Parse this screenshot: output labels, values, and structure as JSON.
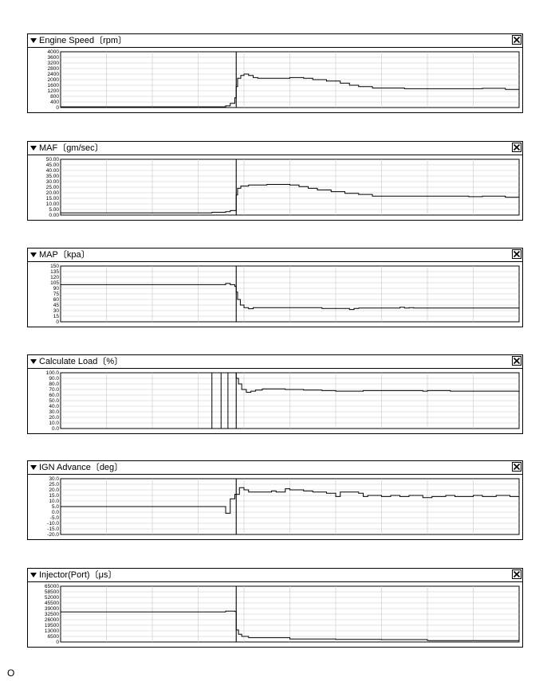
{
  "footer": {
    "mark": "O"
  },
  "icons": {
    "collapse": "triangle-down-icon",
    "close": "close-x-icon"
  },
  "panels": [
    {
      "title": "Engine Speed〔rpm〕",
      "ticks": [
        "4000",
        "3600",
        "3200",
        "2800",
        "2400",
        "2000",
        "1600",
        "1200",
        "800",
        "400",
        "0"
      ]
    },
    {
      "title": "MAF〔gm/sec〕",
      "ticks": [
        "50.00",
        "45.00",
        "40.00",
        "35.00",
        "30.00",
        "25.00",
        "20.00",
        "15.00",
        "10.00",
        "5.00",
        "0.00"
      ]
    },
    {
      "title": "MAP〔kpa〕",
      "ticks": [
        "150",
        "135",
        "120",
        "105",
        "90",
        "75",
        "60",
        "45",
        "30",
        "15",
        "0"
      ]
    },
    {
      "title": "Calculate Load〔%〕",
      "ticks": [
        "100.0",
        "90.0",
        "80.0",
        "70.0",
        "60.0",
        "50.0",
        "40.0",
        "30.0",
        "20.0",
        "10.0",
        "0.0"
      ]
    },
    {
      "title": "IGN Advance〔deg〕",
      "ticks": [
        "30.0",
        "25.0",
        "20.0",
        "15.0",
        "10.0",
        "5.0",
        "0.0",
        "-5.0",
        "-10.0",
        "-15.0",
        "-20.0"
      ]
    },
    {
      "title": "Injector(Port)〔μs〕",
      "ticks": [
        "65000",
        "58500",
        "52000",
        "45500",
        "39000",
        "32500",
        "26000",
        "19500",
        "13000",
        "6500",
        "0"
      ]
    }
  ],
  "chart_data": [
    {
      "type": "line",
      "title": "Engine Speed〔rpm〕",
      "ylim": [
        0,
        4000
      ],
      "xlim": [
        0,
        100
      ],
      "grid": true,
      "series": [
        {
          "values": [
            [
              0,
              50
            ],
            [
              36,
              50
            ],
            [
              36,
              120
            ],
            [
              37,
              120
            ],
            [
              37,
              300
            ],
            [
              38,
              300
            ],
            [
              38,
              700
            ],
            [
              38.3,
              700
            ],
            [
              38.3,
              1500
            ],
            [
              38.6,
              1500
            ],
            [
              38.6,
              2100
            ],
            [
              39.3,
              2100
            ],
            [
              39.3,
              2300
            ],
            [
              40,
              2300
            ],
            [
              40,
              2400
            ],
            [
              41,
              2400
            ],
            [
              41,
              2300
            ],
            [
              42,
              2300
            ],
            [
              42,
              2150
            ],
            [
              43,
              2150
            ],
            [
              43,
              2100
            ],
            [
              50,
              2100
            ],
            [
              50,
              2150
            ],
            [
              53,
              2150
            ],
            [
              53,
              2100
            ],
            [
              55,
              2100
            ],
            [
              55,
              2000
            ],
            [
              58,
              2000
            ],
            [
              58,
              1900
            ],
            [
              61,
              1900
            ],
            [
              61,
              1750
            ],
            [
              63,
              1750
            ],
            [
              63,
              1600
            ],
            [
              65,
              1600
            ],
            [
              65,
              1500
            ],
            [
              68,
              1500
            ],
            [
              68,
              1400
            ],
            [
              75,
              1400
            ],
            [
              75,
              1350
            ],
            [
              92,
              1350
            ],
            [
              92,
              1380
            ],
            [
              97,
              1380
            ],
            [
              97,
              1300
            ],
            [
              100,
              1300
            ]
          ]
        }
      ]
    },
    {
      "type": "line",
      "title": "MAF〔gm/sec〕",
      "ylim": [
        0,
        50
      ],
      "xlim": [
        0,
        100
      ],
      "grid": true,
      "series": [
        {
          "values": [
            [
              0,
              2
            ],
            [
              33,
              2
            ],
            [
              33,
              2.5
            ],
            [
              36,
              2.5
            ],
            [
              36,
              3
            ],
            [
              37,
              3
            ],
            [
              37,
              4
            ],
            [
              38,
              4
            ],
            [
              38.3,
              4
            ],
            [
              38.3,
              18
            ],
            [
              38.6,
              18
            ],
            [
              38.6,
              24
            ],
            [
              39.3,
              24
            ],
            [
              39.3,
              26
            ],
            [
              41,
              26
            ],
            [
              41,
              27
            ],
            [
              45,
              27
            ],
            [
              45,
              27.5
            ],
            [
              50,
              27.5
            ],
            [
              50,
              27
            ],
            [
              52,
              27
            ],
            [
              52,
              25.5
            ],
            [
              54,
              25.5
            ],
            [
              54,
              24
            ],
            [
              56,
              24
            ],
            [
              56,
              22.5
            ],
            [
              59,
              22.5
            ],
            [
              59,
              21
            ],
            [
              62,
              21
            ],
            [
              62,
              19.5
            ],
            [
              65,
              19.5
            ],
            [
              65,
              18.5
            ],
            [
              68,
              18.5
            ],
            [
              68,
              17
            ],
            [
              89,
              17
            ],
            [
              89,
              16.5
            ],
            [
              92,
              16.5
            ],
            [
              92,
              17
            ],
            [
              97,
              17
            ],
            [
              97,
              16
            ],
            [
              100,
              16
            ]
          ]
        }
      ]
    },
    {
      "type": "line",
      "title": "MAP〔kpa〕",
      "ylim": [
        0,
        150
      ],
      "xlim": [
        0,
        100
      ],
      "grid": true,
      "series": [
        {
          "values": [
            [
              0,
              100
            ],
            [
              36,
              100
            ],
            [
              36,
              103
            ],
            [
              37,
              103
            ],
            [
              37,
              100
            ],
            [
              38,
              100
            ],
            [
              38,
              95
            ],
            [
              38.3,
              95
            ],
            [
              38.3,
              80
            ],
            [
              38.6,
              80
            ],
            [
              38.6,
              60
            ],
            [
              39.2,
              60
            ],
            [
              39.2,
              45
            ],
            [
              40,
              45
            ],
            [
              40,
              38
            ],
            [
              41,
              38
            ],
            [
              41,
              35
            ],
            [
              42,
              35
            ],
            [
              42,
              38
            ],
            [
              57,
              38
            ],
            [
              57,
              36
            ],
            [
              63,
              36
            ],
            [
              63,
              33
            ],
            [
              64,
              33
            ],
            [
              64,
              36
            ],
            [
              65,
              36
            ],
            [
              65,
              37
            ],
            [
              74,
              37
            ],
            [
              74,
              39
            ],
            [
              75,
              39
            ],
            [
              75,
              37
            ],
            [
              76,
              37
            ],
            [
              76,
              38
            ],
            [
              77,
              38
            ],
            [
              77,
              37
            ],
            [
              100,
              37
            ]
          ]
        }
      ]
    },
    {
      "type": "line",
      "title": "Calculate Load〔%〕",
      "ylim": [
        0,
        100
      ],
      "xlim": [
        0,
        100
      ],
      "grid": true,
      "series": [
        {
          "values": [
            [
              0,
              0
            ],
            [
              33,
              0
            ],
            [
              33,
              100
            ],
            [
              35,
              100
            ],
            [
              35,
              0
            ],
            [
              36.5,
              0
            ],
            [
              36.5,
              100
            ],
            [
              38,
              100
            ],
            [
              38.3,
              100
            ],
            [
              38.3,
              90
            ],
            [
              38.8,
              90
            ],
            [
              38.8,
              80
            ],
            [
              39.5,
              80
            ],
            [
              39.5,
              70
            ],
            [
              40.5,
              70
            ],
            [
              40.5,
              65
            ],
            [
              41.5,
              65
            ],
            [
              41.5,
              67
            ],
            [
              42.5,
              67
            ],
            [
              42.5,
              69
            ],
            [
              44,
              69
            ],
            [
              44,
              71
            ],
            [
              49,
              71
            ],
            [
              49,
              70
            ],
            [
              53,
              70
            ],
            [
              53,
              69
            ],
            [
              57,
              69
            ],
            [
              57,
              68
            ],
            [
              60,
              68
            ],
            [
              60,
              67
            ],
            [
              66,
              67
            ],
            [
              66,
              68
            ],
            [
              79,
              68
            ],
            [
              79,
              67
            ],
            [
              80,
              67
            ],
            [
              80,
              68
            ],
            [
              85,
              68
            ],
            [
              85,
              67
            ],
            [
              100,
              67
            ]
          ]
        }
      ]
    },
    {
      "type": "line",
      "title": "IGN Advance〔deg〕",
      "ylim": [
        -20,
        30
      ],
      "xlim": [
        0,
        100
      ],
      "grid": true,
      "series": [
        {
          "values": [
            [
              0,
              5
            ],
            [
              36,
              5
            ],
            [
              36,
              -1
            ],
            [
              37,
              -1
            ],
            [
              37,
              12
            ],
            [
              38,
              12
            ],
            [
              38,
              16
            ],
            [
              39,
              16
            ],
            [
              39,
              22
            ],
            [
              40,
              22
            ],
            [
              40,
              20
            ],
            [
              41,
              20
            ],
            [
              41,
              18
            ],
            [
              46,
              18
            ],
            [
              46,
              19
            ],
            [
              47,
              19
            ],
            [
              47,
              18
            ],
            [
              49,
              18
            ],
            [
              49,
              21
            ],
            [
              50,
              21
            ],
            [
              50,
              20
            ],
            [
              53,
              20
            ],
            [
              53,
              19
            ],
            [
              55,
              19
            ],
            [
              55,
              18
            ],
            [
              58,
              18
            ],
            [
              58,
              17
            ],
            [
              60,
              17
            ],
            [
              60,
              14
            ],
            [
              61,
              14
            ],
            [
              61,
              18
            ],
            [
              65,
              18
            ],
            [
              65,
              17
            ],
            [
              66,
              17
            ],
            [
              66,
              14
            ],
            [
              67,
              14
            ],
            [
              67,
              15
            ],
            [
              70,
              15
            ],
            [
              70,
              14
            ],
            [
              72,
              14
            ],
            [
              72,
              15
            ],
            [
              74,
              15
            ],
            [
              74,
              14
            ],
            [
              76,
              14
            ],
            [
              76,
              15
            ],
            [
              79,
              15
            ],
            [
              79,
              13
            ],
            [
              81,
              13
            ],
            [
              81,
              14
            ],
            [
              84,
              14
            ],
            [
              84,
              15
            ],
            [
              86,
              15
            ],
            [
              86,
              14
            ],
            [
              90,
              14
            ],
            [
              90,
              15
            ],
            [
              92,
              15
            ],
            [
              92,
              14
            ],
            [
              95,
              14
            ],
            [
              95,
              15
            ],
            [
              98,
              15
            ],
            [
              98,
              14
            ],
            [
              100,
              14
            ]
          ]
        }
      ]
    },
    {
      "type": "line",
      "title": "Injector(Port)〔μs〕",
      "ylim": [
        0,
        65000
      ],
      "xlim": [
        0,
        100
      ],
      "grid": true,
      "series": [
        {
          "values": [
            [
              0,
              35000
            ],
            [
              36,
              35000
            ],
            [
              36,
              36000
            ],
            [
              38,
              36000
            ],
            [
              38,
              35500
            ],
            [
              38.3,
              35500
            ],
            [
              38.3,
              14000
            ],
            [
              38.8,
              14000
            ],
            [
              38.8,
              9000
            ],
            [
              39.5,
              9000
            ],
            [
              39.5,
              6500
            ],
            [
              41,
              6500
            ],
            [
              41,
              5000
            ],
            [
              50,
              5000
            ],
            [
              50,
              3500
            ],
            [
              60,
              3500
            ],
            [
              60,
              3000
            ],
            [
              70,
              3000
            ],
            [
              70,
              2800
            ],
            [
              80,
              2800
            ],
            [
              80,
              1600
            ],
            [
              100,
              1600
            ]
          ]
        }
      ]
    }
  ]
}
